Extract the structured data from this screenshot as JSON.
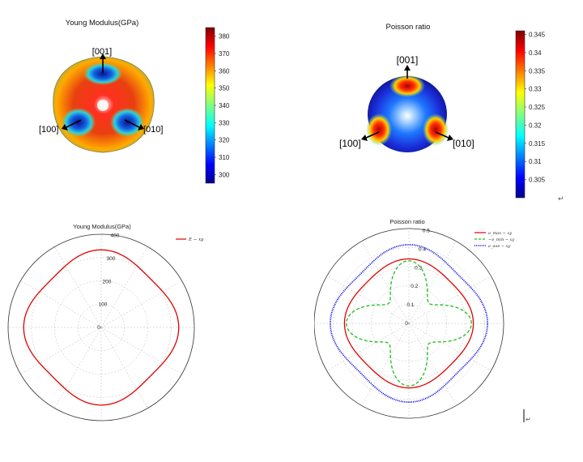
{
  "panels": {
    "young3d": {
      "title": "Young Modulus(GPa)",
      "directions": [
        "[001]",
        "[100]",
        "[010]"
      ],
      "colorbar": {
        "min": 295,
        "max": 385,
        "ticks": [
          "380",
          "370",
          "360",
          "350",
          "340",
          "330",
          "320",
          "310",
          "300"
        ]
      }
    },
    "poisson3d": {
      "title": "Poisson ratio",
      "directions": [
        "[001]",
        "[100]",
        "[010]"
      ],
      "colorbar": {
        "min": 0.3,
        "max": 0.346,
        "ticks": [
          "0.345",
          "0.34",
          "0.335",
          "0.33",
          "0.325",
          "0.32",
          "0.315",
          "0.31",
          "0.305"
        ]
      }
    },
    "youngPolar": {
      "title": "Young Modulus(GPa)",
      "legend": [
        "E − xy"
      ],
      "r_ticks": [
        "0",
        "100",
        "200",
        "300",
        "400"
      ]
    },
    "poissonPolar": {
      "title": "Poisson ratio",
      "legend": [
        "ν_max − xy",
        "−ν_min − xy",
        "ν_ave − xy"
      ],
      "r_ticks": [
        "0",
        "0.1",
        "0.2",
        "0.3",
        "0.4",
        "0.5"
      ]
    }
  },
  "marks": [
    "↵",
    "↵"
  ],
  "chart_data": [
    {
      "type": "polar",
      "title": "Young Modulus(GPa)",
      "series": [
        {
          "name": "E − xy",
          "color": "#e00000",
          "r_base": 315,
          "r_amp": 18,
          "period_deg": 90,
          "phase_deg": 0
        }
      ],
      "rlim": [
        0,
        400
      ]
    },
    {
      "type": "polar",
      "title": "Poisson ratio",
      "series": [
        {
          "name": "ν_max − xy",
          "color": "#e00000",
          "style": "solid",
          "r_base": 0.325,
          "r_amp": 0.015,
          "period_deg": 90,
          "phase_deg": 0
        },
        {
          "name": "−ν_min − xy",
          "color": "#22bb22",
          "style": "dash",
          "r_base": 0.24,
          "r_amp": 0.09,
          "period_deg": 90,
          "phase_deg": 0
        },
        {
          "name": "ν_ave − xy",
          "color": "#0000dd",
          "style": "dot",
          "r_base": 0.39,
          "r_amp": 0.025,
          "period_deg": 90,
          "phase_deg": 0
        }
      ],
      "rlim": [
        0,
        0.5
      ]
    }
  ]
}
